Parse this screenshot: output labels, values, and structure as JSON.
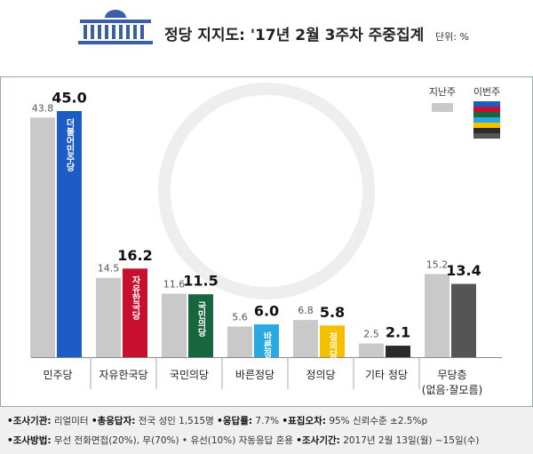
{
  "chart_data": {
    "type": "bar",
    "title": "정당 지지도: '17년 2월 3주차 주중집계",
    "unit": "단위: %",
    "categories": [
      "민주당",
      "자유한국당",
      "국민의당",
      "바른정당",
      "정의당",
      "기타 정당",
      "무당층\n(없음·잘모름)"
    ],
    "series": [
      {
        "name": "지난주",
        "color": "#c9c9c9",
        "values": [
          43.8,
          14.5,
          11.6,
          5.6,
          6.8,
          2.5,
          15.2
        ]
      },
      {
        "name": "이번주",
        "colors": [
          "#1d5cc4",
          "#c8102e",
          "#17663d",
          "#2aa8e2",
          "#f5c000",
          "#2b2b2b",
          "#555555"
        ],
        "values": [
          45.0,
          16.2,
          11.5,
          6.0,
          5.8,
          2.1,
          13.4
        ],
        "value_labels": [
          "45.0",
          "16.2",
          "11.5",
          "6.0",
          "5.8",
          "2.1",
          "13.4"
        ],
        "bar_labels": [
          "더불어민주당",
          "자유한국당",
          "국민의당",
          "바른정당",
          "정의당",
          null,
          null
        ]
      }
    ],
    "footnotes": [
      [
        {
          "label": "•조사기관:",
          "text": " 리얼미터 "
        },
        {
          "label": "•총응답자:",
          "text": " 전국 성인 1,515명 "
        },
        {
          "label": "•응답률:",
          "text": " 7.7% "
        },
        {
          "label": "•표집오차:",
          "text": " 95% 신뢰수준 ±2.5%p"
        }
      ],
      [
        {
          "label": "•조사방법:",
          "text": " 무선 전화면접(20%), 무(70%) • 유선(10%) 자동응답 혼용 "
        },
        {
          "label": "•조사기간:",
          "text": " 2017년 2월 13일(월) ~15일(수)"
        }
      ]
    ]
  }
}
